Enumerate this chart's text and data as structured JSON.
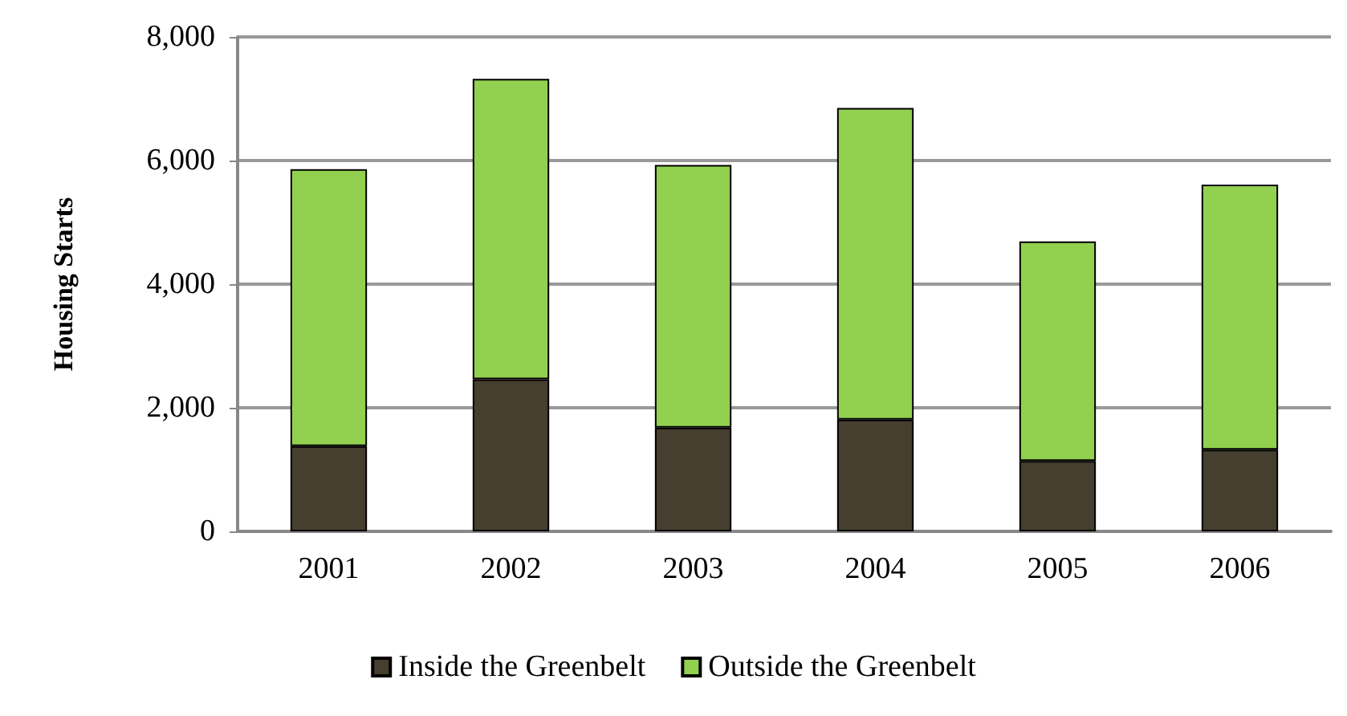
{
  "chart_data": {
    "type": "bar",
    "stacked": true,
    "ylabel": "Housing Starts",
    "categories": [
      "2001",
      "2002",
      "2003",
      "2004",
      "2005",
      "2006"
    ],
    "series": [
      {
        "name": "Inside the Greenbelt",
        "color": "#463e2e",
        "values": [
          1380,
          2460,
          1680,
          1810,
          1140,
          1320
        ]
      },
      {
        "name": "Outside the Greenbelt",
        "color": "#92d050",
        "values": [
          4480,
          4860,
          4250,
          5040,
          3550,
          4290
        ]
      }
    ],
    "ylim": [
      0,
      8000
    ],
    "yticks": [
      0,
      {
        "value": 2000,
        "label": "2,000"
      },
      {
        "value": 4000,
        "label": "4,000"
      },
      {
        "value": 6000,
        "label": "6,000"
      },
      {
        "value": 8000,
        "label": "8,000"
      }
    ],
    "grid": "y",
    "legend": "bottom"
  }
}
